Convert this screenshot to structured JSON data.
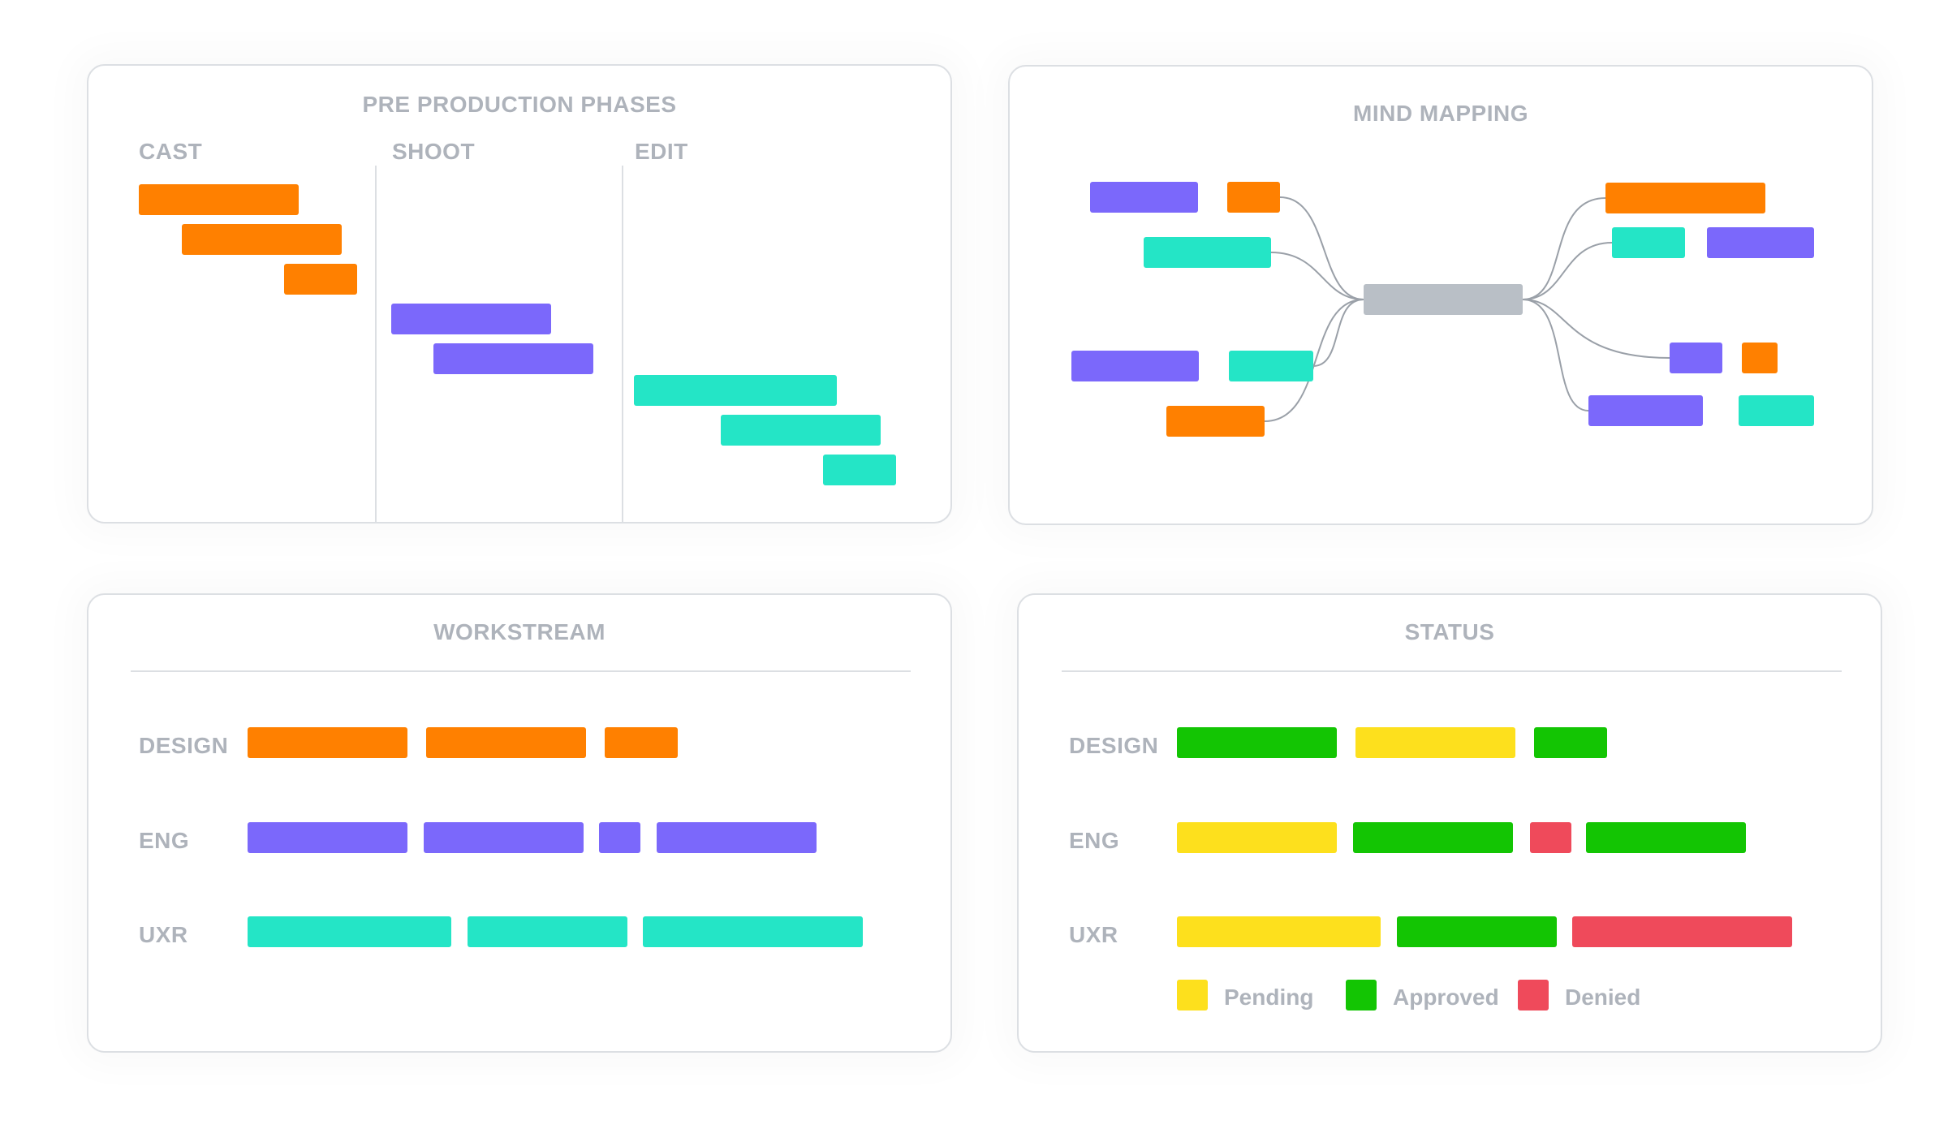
{
  "colors": {
    "orange": "#ff8000",
    "purple": "#7b68fb",
    "teal": "#24e5c6",
    "grey": "#b9bfc6",
    "green": "#13c503",
    "yellow": "#fde01d",
    "red": "#ef4a5b",
    "text": "#aeb3bb"
  },
  "phases": {
    "title": "PRE PRODUCTION PHASES",
    "columns": [
      "CAST",
      "SHOOT",
      "EDIT"
    ]
  },
  "mindmap": {
    "title": "MIND MAPPING"
  },
  "workstream": {
    "title": "WORKSTREAM",
    "rows": [
      "DESIGN",
      "ENG",
      "UXR"
    ]
  },
  "status": {
    "title": "STATUS",
    "rows": [
      "DESIGN",
      "ENG",
      "UXR"
    ],
    "legend": [
      "Pending",
      "Approved",
      "Denied"
    ]
  }
}
